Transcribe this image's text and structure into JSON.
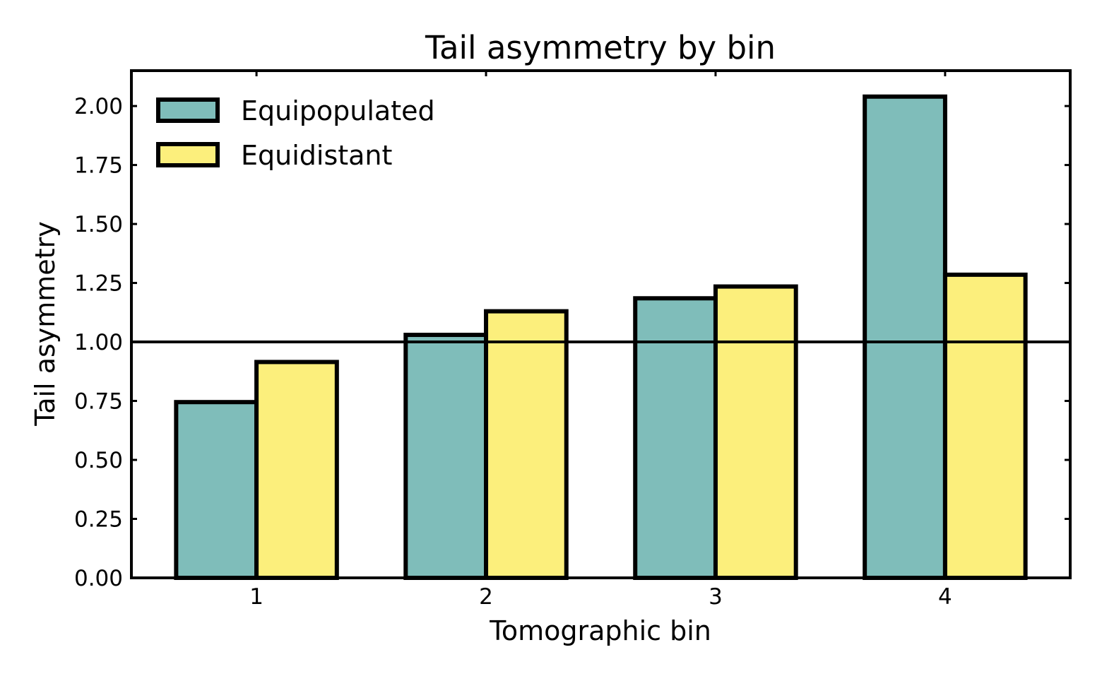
{
  "chart_data": {
    "type": "bar",
    "title": "Tail asymmetry by bin",
    "xlabel": "Tomographic bin",
    "ylabel": "Tail asymmetry",
    "categories": [
      "1",
      "2",
      "3",
      "4"
    ],
    "series": [
      {
        "name": "Equipopulated",
        "color": "#7fbdba",
        "values": [
          0.745,
          1.03,
          1.185,
          2.04
        ]
      },
      {
        "name": "Equidistant",
        "color": "#fcef7c",
        "values": [
          0.915,
          1.13,
          1.235,
          1.285
        ]
      }
    ],
    "ylim": [
      0,
      2.15
    ],
    "yticks": [
      0.0,
      0.25,
      0.5,
      0.75,
      1.0,
      1.25,
      1.5,
      1.75,
      2.0
    ],
    "ytick_labels": [
      "0.00",
      "0.25",
      "0.50",
      "0.75",
      "1.00",
      "1.25",
      "1.50",
      "1.75",
      "2.00"
    ],
    "reference_line": {
      "y": 1.0
    },
    "legend": {
      "position": "top-left"
    },
    "grid": false
  }
}
